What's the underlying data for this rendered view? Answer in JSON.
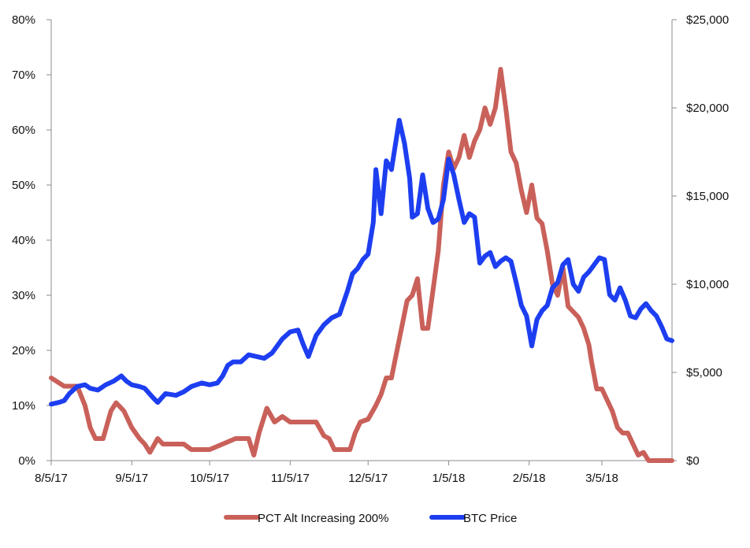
{
  "chart_data": {
    "type": "line",
    "title": "",
    "y_left": {
      "ylim": [
        0,
        80
      ],
      "ticks": [
        0,
        10,
        20,
        30,
        40,
        50,
        60,
        70,
        80
      ],
      "tick_labels": [
        "0%",
        "10%",
        "20%",
        "30%",
        "40%",
        "50%",
        "60%",
        "70%",
        "80%"
      ]
    },
    "y_right": {
      "ylim": [
        0,
        25000
      ],
      "ticks": [
        0,
        5000,
        10000,
        15000,
        20000,
        25000
      ],
      "tick_labels": [
        "$0",
        "$5,000",
        "$10,000",
        "$15,000",
        "$20,000",
        "$25,000"
      ]
    },
    "x_axis": {
      "xlim": [
        "2017-08-05",
        "2018-04-01"
      ],
      "ticks": [
        "2017-08-05",
        "2017-09-05",
        "2017-10-05",
        "2017-11-05",
        "2017-12-05",
        "2018-01-05",
        "2018-02-05",
        "2018-03-05"
      ],
      "tick_labels": [
        "8/5/17",
        "9/5/17",
        "10/5/17",
        "11/5/17",
        "12/5/17",
        "1/5/18",
        "2/5/18",
        "3/5/18"
      ]
    },
    "grid": false,
    "legend_position": "bottom",
    "series": [
      {
        "name": "PCT Alt Increasing 200%",
        "axis": "left",
        "color": "#c9615a",
        "points": [
          [
            "2017-08-05",
            15
          ],
          [
            "2017-08-10",
            13.5
          ],
          [
            "2017-08-15",
            13.5
          ],
          [
            "2017-08-18",
            10
          ],
          [
            "2017-08-20",
            6
          ],
          [
            "2017-08-22",
            4
          ],
          [
            "2017-08-25",
            4
          ],
          [
            "2017-08-28",
            9
          ],
          [
            "2017-08-30",
            10.5
          ],
          [
            "2017-09-02",
            9
          ],
          [
            "2017-09-05",
            6
          ],
          [
            "2017-09-08",
            4
          ],
          [
            "2017-09-10",
            3
          ],
          [
            "2017-09-12",
            1.5
          ],
          [
            "2017-09-15",
            4
          ],
          [
            "2017-09-17",
            3
          ],
          [
            "2017-09-20",
            3
          ],
          [
            "2017-09-25",
            3
          ],
          [
            "2017-09-28",
            2
          ],
          [
            "2017-10-05",
            2
          ],
          [
            "2017-10-10",
            3
          ],
          [
            "2017-10-15",
            4
          ],
          [
            "2017-10-20",
            4
          ],
          [
            "2017-10-22",
            1
          ],
          [
            "2017-10-24",
            5
          ],
          [
            "2017-10-27",
            9.5
          ],
          [
            "2017-10-30",
            7
          ],
          [
            "2017-11-02",
            8
          ],
          [
            "2017-11-05",
            7
          ],
          [
            "2017-11-10",
            7
          ],
          [
            "2017-11-15",
            7
          ],
          [
            "2017-11-18",
            4.5
          ],
          [
            "2017-11-20",
            4
          ],
          [
            "2017-11-22",
            2
          ],
          [
            "2017-11-28",
            2
          ],
          [
            "2017-11-30",
            5
          ],
          [
            "2017-12-02",
            7
          ],
          [
            "2017-12-05",
            7.5
          ],
          [
            "2017-12-08",
            10
          ],
          [
            "2017-12-10",
            12
          ],
          [
            "2017-12-12",
            15
          ],
          [
            "2017-12-14",
            15
          ],
          [
            "2017-12-17",
            22
          ],
          [
            "2017-12-20",
            29
          ],
          [
            "2017-12-22",
            30
          ],
          [
            "2017-12-24",
            33
          ],
          [
            "2017-12-26",
            24
          ],
          [
            "2017-12-28",
            24
          ],
          [
            "2017-12-30",
            31
          ],
          [
            "2018-01-01",
            38
          ],
          [
            "2018-01-03",
            50
          ],
          [
            "2018-01-05",
            56
          ],
          [
            "2018-01-07",
            53
          ],
          [
            "2018-01-09",
            55
          ],
          [
            "2018-01-11",
            59
          ],
          [
            "2018-01-13",
            55
          ],
          [
            "2018-01-15",
            58
          ],
          [
            "2018-01-17",
            60
          ],
          [
            "2018-01-19",
            64
          ],
          [
            "2018-01-21",
            61
          ],
          [
            "2018-01-23",
            64
          ],
          [
            "2018-01-25",
            71
          ],
          [
            "2018-01-27",
            64
          ],
          [
            "2018-01-29",
            56
          ],
          [
            "2018-01-31",
            54
          ],
          [
            "2018-02-02",
            49
          ],
          [
            "2018-02-04",
            45
          ],
          [
            "2018-02-06",
            50
          ],
          [
            "2018-02-08",
            44
          ],
          [
            "2018-02-10",
            43
          ],
          [
            "2018-02-12",
            38
          ],
          [
            "2018-02-14",
            32
          ],
          [
            "2018-02-16",
            30
          ],
          [
            "2018-02-18",
            35
          ],
          [
            "2018-02-20",
            28
          ],
          [
            "2018-02-22",
            27
          ],
          [
            "2018-02-24",
            26
          ],
          [
            "2018-02-26",
            24
          ],
          [
            "2018-02-28",
            21
          ],
          [
            "2018-03-01",
            18
          ],
          [
            "2018-03-03",
            13
          ],
          [
            "2018-03-05",
            13
          ],
          [
            "2018-03-07",
            11
          ],
          [
            "2018-03-09",
            9
          ],
          [
            "2018-03-11",
            6
          ],
          [
            "2018-03-13",
            5
          ],
          [
            "2018-03-15",
            5
          ],
          [
            "2018-03-17",
            3
          ],
          [
            "2018-03-19",
            1
          ],
          [
            "2018-03-21",
            1.5
          ],
          [
            "2018-03-23",
            0
          ],
          [
            "2018-04-01",
            0
          ]
        ]
      },
      {
        "name": "BTC Price",
        "axis": "right",
        "color": "#1d3ef0",
        "points": [
          [
            "2017-08-05",
            3200
          ],
          [
            "2017-08-08",
            3300
          ],
          [
            "2017-08-10",
            3400
          ],
          [
            "2017-08-12",
            3800
          ],
          [
            "2017-08-15",
            4200
          ],
          [
            "2017-08-18",
            4300
          ],
          [
            "2017-08-20",
            4100
          ],
          [
            "2017-08-23",
            4000
          ],
          [
            "2017-08-26",
            4300
          ],
          [
            "2017-08-29",
            4500
          ],
          [
            "2017-09-01",
            4800
          ],
          [
            "2017-09-03",
            4500
          ],
          [
            "2017-09-05",
            4300
          ],
          [
            "2017-09-08",
            4200
          ],
          [
            "2017-09-10",
            4100
          ],
          [
            "2017-09-13",
            3600
          ],
          [
            "2017-09-15",
            3300
          ],
          [
            "2017-09-18",
            3800
          ],
          [
            "2017-09-22",
            3700
          ],
          [
            "2017-09-25",
            3900
          ],
          [
            "2017-09-28",
            4200
          ],
          [
            "2017-10-02",
            4400
          ],
          [
            "2017-10-05",
            4300
          ],
          [
            "2017-10-08",
            4400
          ],
          [
            "2017-10-10",
            4800
          ],
          [
            "2017-10-12",
            5400
          ],
          [
            "2017-10-14",
            5600
          ],
          [
            "2017-10-17",
            5600
          ],
          [
            "2017-10-20",
            6000
          ],
          [
            "2017-10-23",
            5900
          ],
          [
            "2017-10-26",
            5800
          ],
          [
            "2017-10-29",
            6100
          ],
          [
            "2017-11-02",
            6900
          ],
          [
            "2017-11-05",
            7300
          ],
          [
            "2017-11-08",
            7400
          ],
          [
            "2017-11-10",
            6600
          ],
          [
            "2017-11-12",
            5900
          ],
          [
            "2017-11-15",
            7100
          ],
          [
            "2017-11-18",
            7700
          ],
          [
            "2017-11-21",
            8100
          ],
          [
            "2017-11-24",
            8300
          ],
          [
            "2017-11-27",
            9600
          ],
          [
            "2017-11-29",
            10600
          ],
          [
            "2017-12-01",
            10900
          ],
          [
            "2017-12-03",
            11400
          ],
          [
            "2017-12-05",
            11700
          ],
          [
            "2017-12-07",
            13500
          ],
          [
            "2017-12-08",
            16500
          ],
          [
            "2017-12-10",
            14000
          ],
          [
            "2017-12-12",
            17000
          ],
          [
            "2017-12-14",
            16500
          ],
          [
            "2017-12-17",
            19300
          ],
          [
            "2017-12-19",
            18000
          ],
          [
            "2017-12-21",
            16000
          ],
          [
            "2017-12-22",
            13800
          ],
          [
            "2017-12-24",
            14000
          ],
          [
            "2017-12-26",
            16200
          ],
          [
            "2017-12-28",
            14300
          ],
          [
            "2017-12-30",
            13500
          ],
          [
            "2018-01-01",
            13700
          ],
          [
            "2018-01-03",
            14800
          ],
          [
            "2018-01-05",
            17100
          ],
          [
            "2018-01-07",
            16200
          ],
          [
            "2018-01-09",
            14800
          ],
          [
            "2018-01-11",
            13500
          ],
          [
            "2018-01-13",
            14000
          ],
          [
            "2018-01-15",
            13800
          ],
          [
            "2018-01-17",
            11200
          ],
          [
            "2018-01-19",
            11600
          ],
          [
            "2018-01-21",
            11800
          ],
          [
            "2018-01-23",
            11000
          ],
          [
            "2018-01-25",
            11300
          ],
          [
            "2018-01-27",
            11500
          ],
          [
            "2018-01-29",
            11300
          ],
          [
            "2018-01-31",
            10100
          ],
          [
            "2018-02-02",
            8800
          ],
          [
            "2018-02-04",
            8200
          ],
          [
            "2018-02-06",
            6500
          ],
          [
            "2018-02-08",
            8000
          ],
          [
            "2018-02-10",
            8500
          ],
          [
            "2018-02-12",
            8800
          ],
          [
            "2018-02-14",
            9800
          ],
          [
            "2018-02-16",
            10100
          ],
          [
            "2018-02-18",
            11100
          ],
          [
            "2018-02-20",
            11400
          ],
          [
            "2018-02-22",
            10000
          ],
          [
            "2018-02-24",
            9600
          ],
          [
            "2018-02-26",
            10400
          ],
          [
            "2018-02-28",
            10700
          ],
          [
            "2018-03-02",
            11100
          ],
          [
            "2018-03-04",
            11500
          ],
          [
            "2018-03-06",
            11400
          ],
          [
            "2018-03-08",
            9400
          ],
          [
            "2018-03-10",
            9100
          ],
          [
            "2018-03-12",
            9800
          ],
          [
            "2018-03-14",
            9100
          ],
          [
            "2018-03-16",
            8200
          ],
          [
            "2018-03-18",
            8100
          ],
          [
            "2018-03-20",
            8600
          ],
          [
            "2018-03-22",
            8900
          ],
          [
            "2018-03-24",
            8500
          ],
          [
            "2018-03-26",
            8200
          ],
          [
            "2018-03-28",
            7600
          ],
          [
            "2018-03-30",
            6900
          ],
          [
            "2018-04-01",
            6800
          ]
        ]
      }
    ]
  }
}
